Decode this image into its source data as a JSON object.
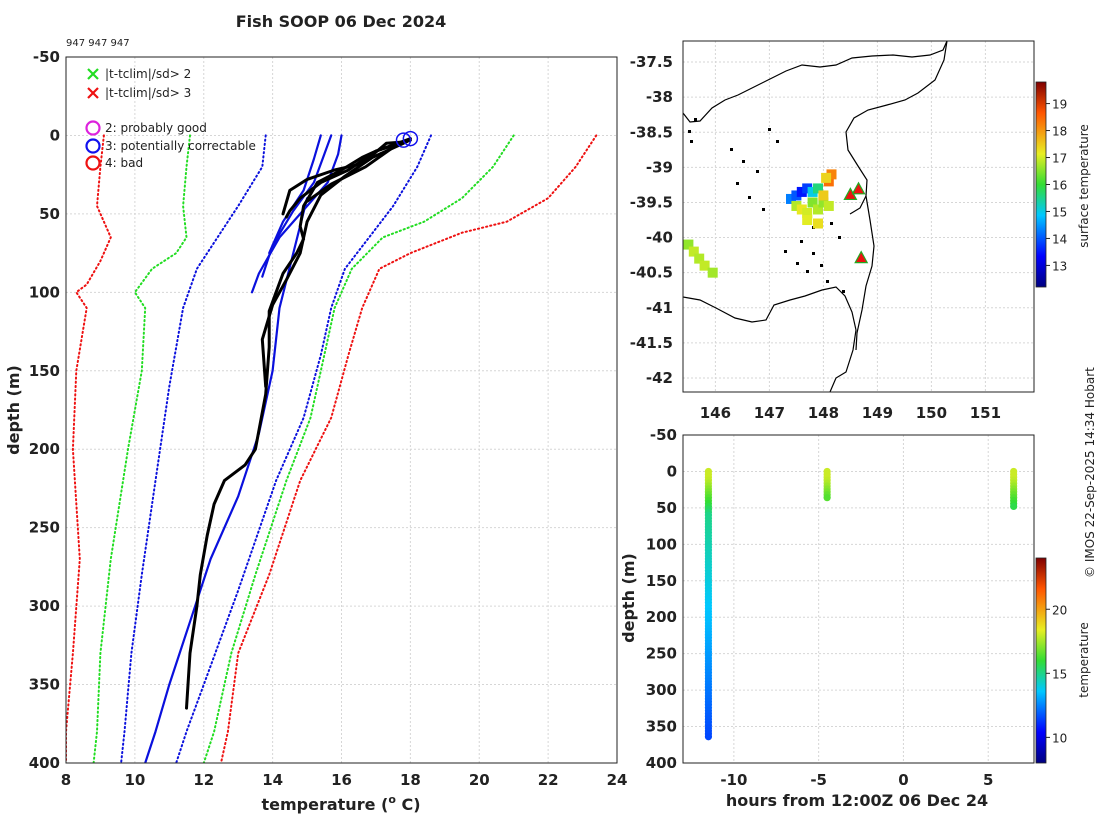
{
  "header": {
    "title": "Fish SOOP 06 Dec 2024",
    "id_label": "947 947 947",
    "credit": "© IMOS 22-Sep-2025 14:34 Hobart"
  },
  "chart_data": [
    {
      "type": "line",
      "name": "temperature-profile",
      "xlabel": "temperature (° C)",
      "xlabel_parts": [
        "temperature (",
        "o",
        " C)"
      ],
      "ylabel": "depth (m)",
      "xlim": [
        8,
        24
      ],
      "ylim": [
        -50,
        400
      ],
      "y_reversed": true,
      "x_ticks": [
        8,
        10,
        12,
        14,
        16,
        18,
        20,
        22,
        24
      ],
      "y_ticks": [
        -50,
        0,
        50,
        100,
        150,
        200,
        250,
        300,
        350,
        400
      ],
      "legend": [
        {
          "marker": "x",
          "color": "#22dd22",
          "label": "|t-tclim|/sd> 2"
        },
        {
          "marker": "x",
          "color": "#ee1111",
          "label": "|t-tclim|/sd> 3"
        },
        {
          "marker": "o",
          "color": "#dd22dd",
          "label": "2: probably good"
        },
        {
          "marker": "o",
          "color": "#1111ee",
          "label": "3: potentially correctable"
        },
        {
          "marker": "o",
          "color": "#ee1111",
          "label": "4: bad"
        }
      ],
      "series": [
        {
          "name": "clim mean surface a",
          "style": "solid",
          "color": "#0a10dd",
          "points": [
            [
              16.0,
              0
            ],
            [
              15.9,
              12
            ],
            [
              15.6,
              30
            ],
            [
              15.0,
              45
            ],
            [
              14.2,
              65
            ],
            [
              13.6,
              88
            ],
            [
              13.4,
              100
            ]
          ]
        },
        {
          "name": "clim mean surface b",
          "style": "solid",
          "color": "#0a10dd",
          "points": [
            [
              15.7,
              0
            ],
            [
              15.5,
              12
            ],
            [
              15.2,
              30
            ],
            [
              14.6,
              48
            ],
            [
              14.0,
              70
            ],
            [
              13.7,
              90
            ]
          ]
        },
        {
          "name": "clim mean surface c",
          "style": "solid",
          "color": "#0a10dd",
          "points": [
            [
              15.4,
              0
            ],
            [
              15.2,
              15
            ],
            [
              14.9,
              35
            ],
            [
              14.3,
              55
            ],
            [
              13.9,
              75
            ]
          ]
        },
        {
          "name": "clim mean deep",
          "style": "solid",
          "color": "#0a10dd",
          "points": [
            [
              15.0,
              40
            ],
            [
              14.6,
              75
            ],
            [
              14.2,
              110
            ],
            [
              14.0,
              150
            ],
            [
              13.6,
              190
            ],
            [
              13.0,
              230
            ],
            [
              12.2,
              270
            ],
            [
              11.6,
              310
            ],
            [
              11.0,
              350
            ],
            [
              10.6,
              380
            ],
            [
              10.3,
              400
            ]
          ]
        },
        {
          "name": "clim -1sd",
          "style": "dotted",
          "color": "#0a10dd",
          "points": [
            [
              13.8,
              0
            ],
            [
              13.7,
              20
            ],
            [
              13.0,
              45
            ],
            [
              12.4,
              65
            ],
            [
              11.8,
              85
            ],
            [
              11.4,
              110
            ],
            [
              11.0,
              160
            ],
            [
              10.6,
              220
            ],
            [
              10.2,
              280
            ],
            [
              9.9,
              330
            ],
            [
              9.7,
              380
            ],
            [
              9.6,
              400
            ]
          ]
        },
        {
          "name": "clim +1sd",
          "style": "dotted",
          "color": "#0a10dd",
          "points": [
            [
              18.6,
              0
            ],
            [
              18.2,
              20
            ],
            [
              17.5,
              45
            ],
            [
              16.8,
              65
            ],
            [
              16.1,
              85
            ],
            [
              15.7,
              110
            ],
            [
              15.4,
              140
            ],
            [
              14.9,
              180
            ],
            [
              14.1,
              220
            ],
            [
              13.0,
              290
            ],
            [
              12.0,
              350
            ],
            [
              11.5,
              380
            ],
            [
              11.2,
              400
            ]
          ]
        },
        {
          "name": "clim -2sd",
          "style": "dotted",
          "color": "#22dd22",
          "points": [
            [
              11.6,
              0
            ],
            [
              11.5,
              20
            ],
            [
              11.4,
              45
            ],
            [
              11.5,
              65
            ],
            [
              11.2,
              75
            ],
            [
              10.5,
              85
            ],
            [
              10.0,
              100
            ],
            [
              10.3,
              110
            ],
            [
              10.2,
              150
            ],
            [
              9.8,
              200
            ],
            [
              9.3,
              270
            ],
            [
              9.0,
              330
            ],
            [
              8.9,
              380
            ],
            [
              8.8,
              400
            ]
          ]
        },
        {
          "name": "clim +2sd",
          "style": "dotted",
          "color": "#22dd22",
          "points": [
            [
              21.0,
              0
            ],
            [
              20.4,
              20
            ],
            [
              19.5,
              40
            ],
            [
              18.4,
              55
            ],
            [
              17.2,
              65
            ],
            [
              16.3,
              85
            ],
            [
              15.8,
              110
            ],
            [
              15.5,
              140
            ],
            [
              15.1,
              180
            ],
            [
              14.4,
              220
            ],
            [
              13.5,
              280
            ],
            [
              12.8,
              330
            ],
            [
              12.3,
              380
            ],
            [
              12.0,
              400
            ]
          ]
        },
        {
          "name": "clim -3sd",
          "style": "dotted",
          "color": "#ee1111",
          "points": [
            [
              9.1,
              0
            ],
            [
              9.0,
              20
            ],
            [
              8.9,
              45
            ],
            [
              9.3,
              65
            ],
            [
              9.0,
              80
            ],
            [
              8.6,
              95
            ],
            [
              8.3,
              100
            ],
            [
              8.6,
              110
            ],
            [
              8.3,
              150
            ],
            [
              8.2,
              200
            ],
            [
              8.4,
              270
            ],
            [
              8.2,
              330
            ],
            [
              8.0,
              380
            ],
            [
              8.0,
              400
            ]
          ]
        },
        {
          "name": "clim +3sd",
          "style": "dotted",
          "color": "#ee1111",
          "points": [
            [
              23.4,
              0
            ],
            [
              22.8,
              20
            ],
            [
              22.0,
              40
            ],
            [
              20.8,
              55
            ],
            [
              19.5,
              62
            ],
            [
              18.0,
              75
            ],
            [
              17.1,
              85
            ],
            [
              16.6,
              110
            ],
            [
              16.2,
              140
            ],
            [
              15.7,
              180
            ],
            [
              14.8,
              220
            ],
            [
              13.9,
              280
            ],
            [
              13.0,
              330
            ],
            [
              12.7,
              380
            ],
            [
              12.5,
              400
            ]
          ]
        },
        {
          "name": "observed cast 1",
          "style": "thick",
          "color": "#000000",
          "points": [
            [
              18.0,
              2
            ],
            [
              17.5,
              6
            ],
            [
              17.0,
              10
            ],
            [
              16.6,
              14
            ],
            [
              16.0,
              22
            ],
            [
              15.3,
              30
            ],
            [
              14.9,
              45
            ],
            [
              14.8,
              58
            ],
            [
              14.9,
              66
            ],
            [
              14.7,
              75
            ],
            [
              14.3,
              88
            ],
            [
              14.1,
              100
            ],
            [
              13.9,
              112
            ],
            [
              13.9,
              135
            ],
            [
              13.8,
              165
            ],
            [
              13.5,
              200
            ],
            [
              13.2,
              210
            ],
            [
              12.6,
              220
            ],
            [
              12.3,
              235
            ],
            [
              12.1,
              255
            ],
            [
              11.9,
              280
            ],
            [
              11.8,
              300
            ],
            [
              11.6,
              330
            ],
            [
              11.5,
              365
            ]
          ]
        },
        {
          "name": "observed cast 2",
          "style": "thick",
          "color": "#000000",
          "points": [
            [
              17.9,
              4
            ],
            [
              17.3,
              5
            ],
            [
              16.6,
              18
            ],
            [
              15.8,
              22
            ],
            [
              15.0,
              28
            ],
            [
              14.5,
              35
            ],
            [
              14.3,
              50
            ]
          ]
        },
        {
          "name": "observed cast 3",
          "style": "thick",
          "color": "#000000",
          "points": [
            [
              18.0,
              3
            ],
            [
              17.0,
              10
            ],
            [
              16.2,
              22
            ],
            [
              15.4,
              30
            ],
            [
              14.8,
              40
            ],
            [
              14.5,
              48
            ],
            [
              14.4,
              52
            ]
          ]
        },
        {
          "name": "observed cast 4",
          "style": "thick",
          "color": "#000000",
          "points": [
            [
              17.8,
              5
            ],
            [
              16.9,
              14
            ],
            [
              16.1,
              26
            ],
            [
              15.4,
              38
            ],
            [
              15.0,
              55
            ],
            [
              14.8,
              75
            ],
            [
              14.4,
              92
            ],
            [
              14.0,
              108
            ],
            [
              13.7,
              130
            ],
            [
              13.8,
              160
            ]
          ]
        },
        {
          "name": "observed cast 5",
          "style": "thick",
          "color": "#000000",
          "points": [
            [
              17.6,
              6
            ],
            [
              16.7,
              20
            ],
            [
              15.7,
              31
            ],
            [
              15.0,
              42
            ]
          ]
        }
      ],
      "flag_circles": [
        [
          17.8,
          3
        ],
        [
          18.0,
          2
        ]
      ]
    },
    {
      "type": "scatter",
      "name": "surface-temperature-map",
      "colorbar_label": "surface temperature",
      "xlim": [
        145.4,
        151.9
      ],
      "ylim": [
        -42.2,
        -37.2
      ],
      "x_ticks": [
        146,
        147,
        148,
        149,
        150,
        151
      ],
      "y_ticks": [
        -37.5,
        -38,
        -38.5,
        -39,
        -39.5,
        -40,
        -40.5,
        -41,
        -41.5,
        -42
      ],
      "clim": [
        12.2,
        19.8
      ],
      "colorbar_ticks": [
        13,
        14,
        15,
        16,
        17,
        18,
        19
      ],
      "points": [
        [
          147.4,
          -39.45,
          14.3
        ],
        [
          147.5,
          -39.4,
          14.0
        ],
        [
          147.6,
          -39.35,
          13.5
        ],
        [
          147.7,
          -39.3,
          13.8
        ],
        [
          147.8,
          -39.35,
          15.0
        ],
        [
          147.9,
          -39.3,
          15.6
        ],
        [
          147.5,
          -39.55,
          16.8
        ],
        [
          147.6,
          -39.6,
          17.2
        ],
        [
          147.7,
          -39.65,
          17.0
        ],
        [
          147.8,
          -39.5,
          16.5
        ],
        [
          147.9,
          -39.6,
          16.8
        ],
        [
          148.0,
          -39.5,
          16.6
        ],
        [
          148.1,
          -39.55,
          16.9
        ],
        [
          147.7,
          -39.75,
          17.1
        ],
        [
          147.9,
          -39.8,
          17.3
        ],
        [
          148.0,
          -39.4,
          17.5
        ],
        [
          148.1,
          -39.2,
          18.4
        ],
        [
          148.15,
          -39.1,
          18.2
        ],
        [
          148.05,
          -39.15,
          17.4
        ],
        [
          145.5,
          -40.1,
          16.6
        ],
        [
          145.6,
          -40.2,
          16.9
        ],
        [
          145.7,
          -40.3,
          16.8
        ],
        [
          145.8,
          -40.4,
          16.9
        ],
        [
          145.95,
          -40.5,
          16.7
        ]
      ],
      "markers": [
        [
          148.5,
          -39.4
        ],
        [
          148.65,
          -39.32
        ],
        [
          148.7,
          -40.3
        ]
      ]
    },
    {
      "type": "scatter",
      "name": "depth-time-section",
      "xlabel": "hours from 12:00Z 06 Dec 24",
      "ylabel": "depth (m)",
      "colorbar_label": "temperature",
      "xlim": [
        -13,
        7.7
      ],
      "ylim": [
        -50,
        400
      ],
      "x_ticks": [
        -10,
        -5,
        0,
        5
      ],
      "y_ticks": [
        -50,
        0,
        50,
        100,
        150,
        200,
        250,
        300,
        350,
        400
      ],
      "clim": [
        8,
        24
      ],
      "colorbar_ticks": [
        10,
        15,
        20
      ],
      "casts": [
        {
          "x": -11.5,
          "max_depth": 365
        },
        {
          "x": -4.5,
          "max_depth": 38
        },
        {
          "x": 6.5,
          "max_depth": 50
        }
      ]
    }
  ]
}
